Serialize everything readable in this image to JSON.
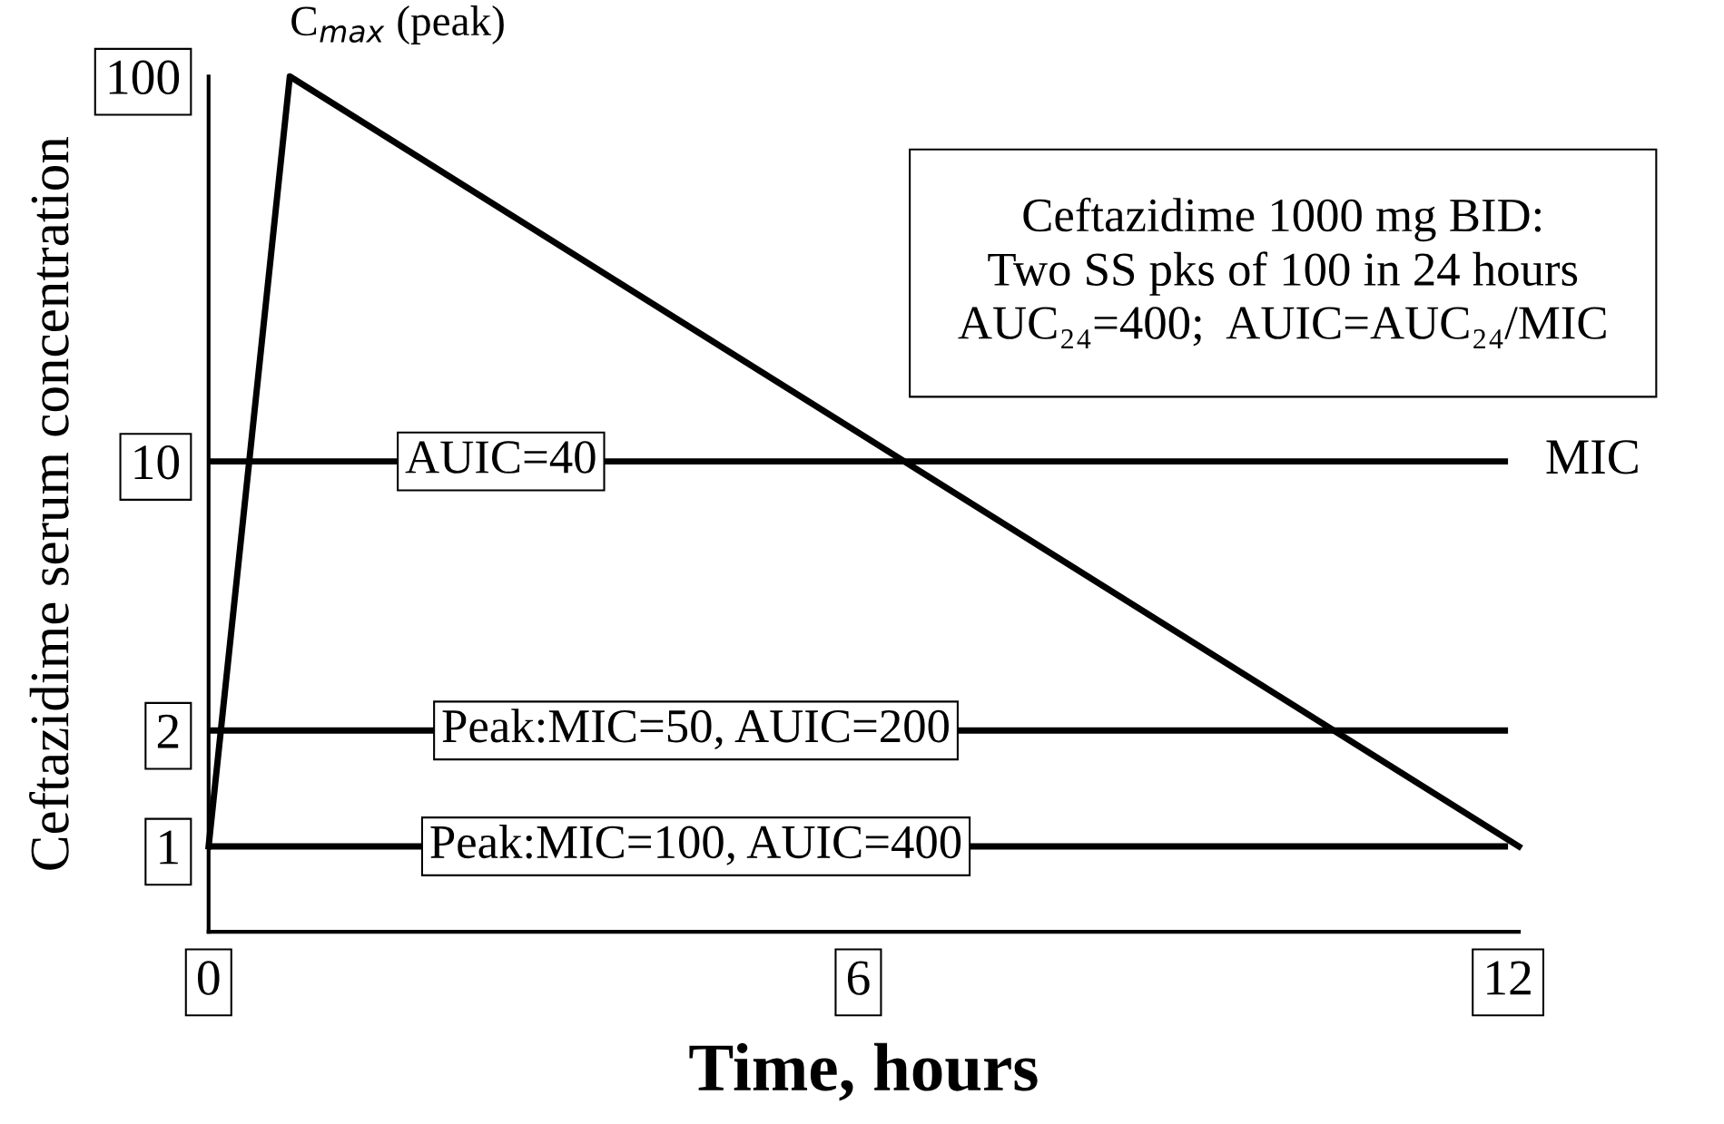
{
  "chart_data": {
    "type": "line",
    "xlabel": "Time, hours",
    "ylabel": "Ceftazidime serum concentration",
    "x": [
      0,
      0.75,
      12.1
    ],
    "series": [
      {
        "color": "#000000",
        "values": [
          1,
          100,
          1
        ]
      }
    ],
    "log": "y",
    "xlim": [
      0,
      12.1
    ],
    "ylim": [
      0.6,
      100
    ],
    "xticks": [
      0,
      6,
      12
    ],
    "yticks": [
      1,
      2,
      10,
      100
    ],
    "grid": false,
    "legend": false,
    "marker": "none",
    "line_style": "solid",
    "ref_lines": [
      {
        "axis": "y",
        "value": 10,
        "label": "MIC",
        "color": "#000000"
      },
      {
        "axis": "y",
        "value": 2,
        "label": null,
        "color": "#000000"
      },
      {
        "axis": "y",
        "value": 1,
        "label": null,
        "color": "#000000"
      }
    ],
    "annotations": [
      {
        "text": "C$_{max}$ (peak)",
        "x": 0.75,
        "y": 100
      },
      "Ceftazidime 1000 mg BID:\nTwo SS pks of 100 in 24 hours\nAUC₂₄=400;  AUIC=AUC₂₄/MIC",
      {
        "text": "AUIC=40",
        "x": 2.7,
        "y": 10
      },
      {
        "text": "Peak:MIC=50, AUIC=200",
        "x": 4.5,
        "y": 2
      },
      {
        "text": "Peak:MIC=100, AUIC=400",
        "x": 4.5,
        "y": 1
      }
    ]
  }
}
